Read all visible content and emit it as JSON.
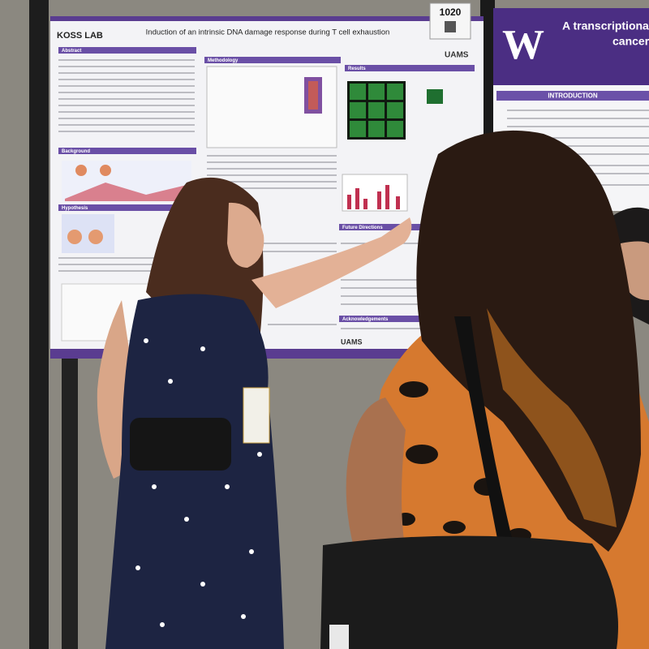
{
  "board_number": "1020",
  "poster_left": {
    "logo": "KOSS LAB",
    "title": "Induction of an intrinsic DNA damage response during T cell exhaustion",
    "logo_right": "UAMS",
    "sections": {
      "abstract": "Abstract",
      "methodology": "Methodology",
      "results": "Results",
      "background": "Background",
      "hypothesis": "Hypothesis",
      "future_directions": "Future Directions",
      "acknowledgements": "Acknowledgements"
    },
    "footer_logo": "UAMS"
  },
  "poster_right": {
    "logo": "W",
    "title_lines": [
      "A transcriptional",
      "cancer"
    ],
    "section": "INTRODUCTION"
  }
}
